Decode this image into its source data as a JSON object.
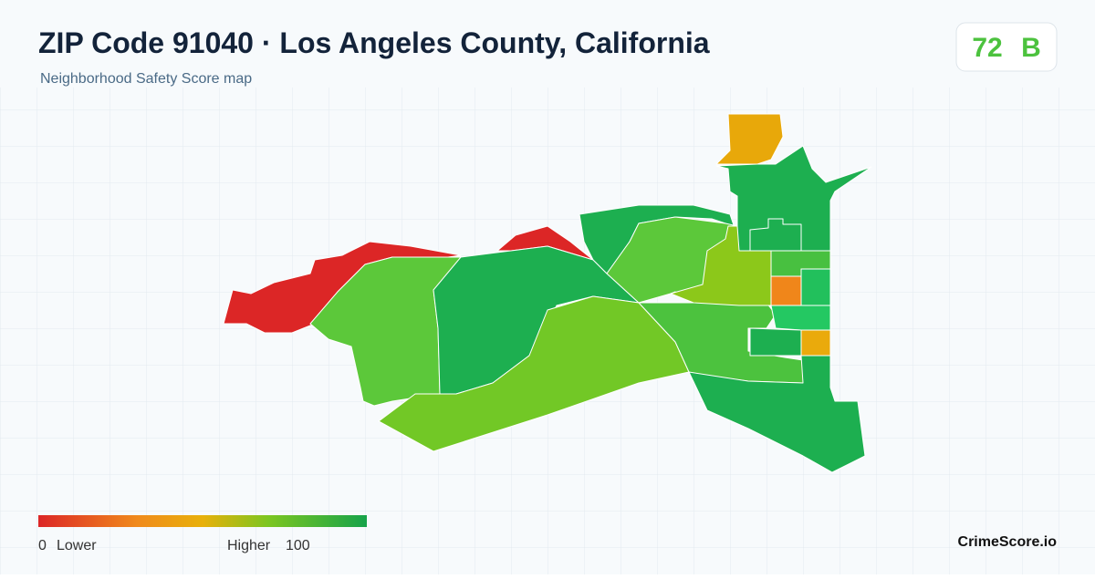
{
  "header": {
    "title": "ZIP Code 91040 · Los Angeles County, California",
    "subtitle": "Neighborhood Safety Score map"
  },
  "score": {
    "value": 72,
    "grade": "B"
  },
  "legend": {
    "min": 0,
    "min_label": "Lower",
    "max_label": "Higher",
    "max": 100
  },
  "brand": "CrimeScore.io"
}
